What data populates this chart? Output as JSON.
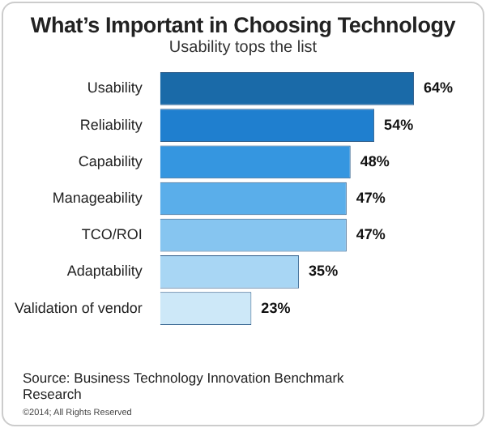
{
  "chart_data": {
    "type": "bar",
    "orientation": "horizontal",
    "title": "What’s Important in Choosing Technology",
    "subtitle": "Usability tops the list",
    "categories": [
      "Usability",
      "Reliability",
      "Capability",
      "Manageability",
      "TCO/ROI",
      "Adaptability",
      "Validation of vendor"
    ],
    "values": [
      64,
      54,
      48,
      47,
      47,
      35,
      23
    ],
    "colors": [
      "#1a6aa8",
      "#1f7fcf",
      "#3596e0",
      "#5aaeea",
      "#86c5f0",
      "#a8d6f4",
      "#cde8f8"
    ],
    "value_labels": [
      "64%",
      "54%",
      "48%",
      "47%",
      "47%",
      "35%",
      "23%"
    ],
    "tick_labels": "y",
    "legend": false,
    "annotations": [
      "Source: Business Technology Innovation Benchmark Research",
      "©2014; All Rights Reserved"
    ]
  }
}
